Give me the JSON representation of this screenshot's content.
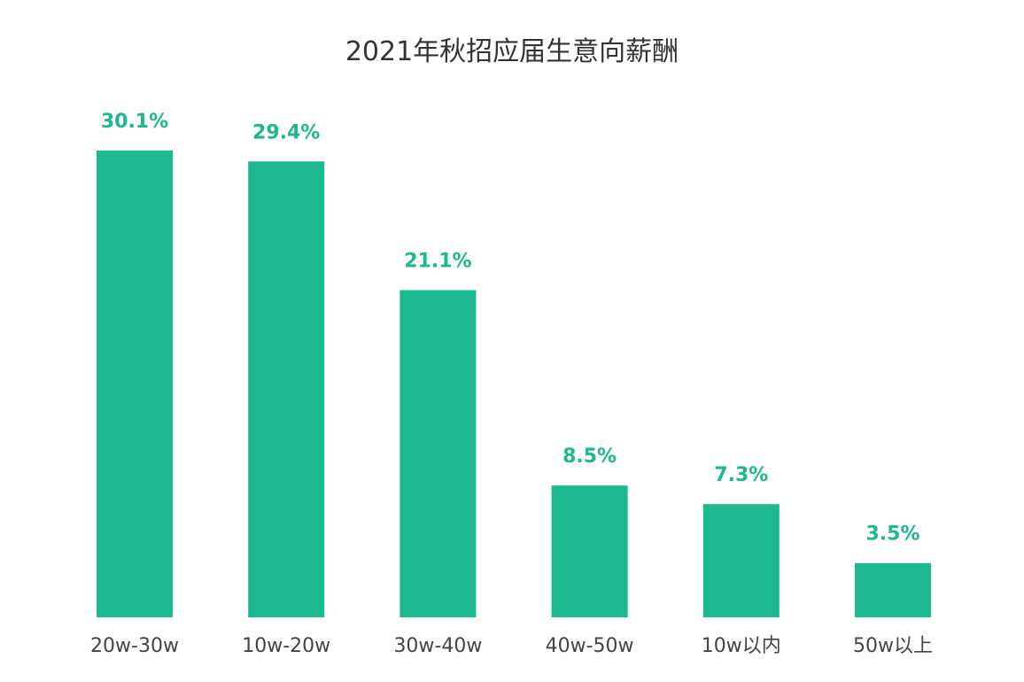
{
  "chart_data": {
    "type": "bar",
    "title": "2021年秋招应届生意向薪酬",
    "categories": [
      "20w-30w",
      "10w-20w",
      "30w-40w",
      "40w-50w",
      "10w以内",
      "50w以上"
    ],
    "values": [
      30.1,
      29.4,
      21.1,
      8.5,
      7.3,
      3.5
    ],
    "value_labels": [
      "30.1%",
      "29.4%",
      "21.1%",
      "8.5%",
      "7.3%",
      "3.5%"
    ],
    "unit": "%",
    "xlabel": "",
    "ylabel": "",
    "ylim": [
      0,
      30.1
    ],
    "grid": false,
    "bar_color": "#1cb890"
  }
}
